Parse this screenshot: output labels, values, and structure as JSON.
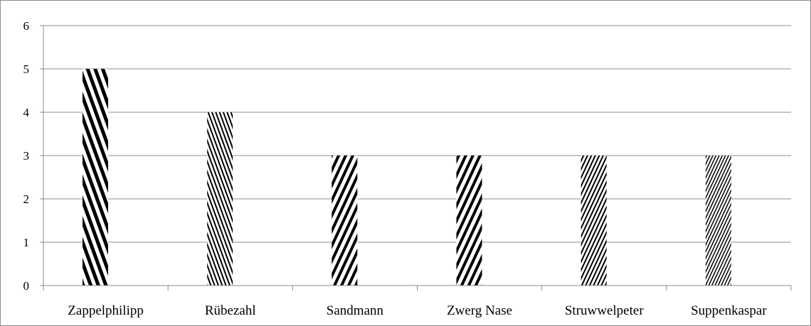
{
  "chart_data": {
    "type": "bar",
    "categories": [
      "Zappelphilipp",
      "Rübezahl",
      "Sandmann",
      "Zwerg Nase",
      "Struwwelpeter",
      "Suppenkaspar"
    ],
    "values": [
      5,
      4,
      3,
      3,
      3,
      3
    ],
    "title": "",
    "xlabel": "",
    "ylabel": "",
    "ylim": [
      0,
      6
    ],
    "yticks": [
      "0",
      "1",
      "2",
      "3",
      "4",
      "5",
      "6"
    ],
    "grid": true,
    "legend": "none",
    "bar_fill": "hatched",
    "colors": {
      "bar_stroke": "#000000",
      "grid": "#8c8c8c",
      "axis": "#8c8c8c",
      "border": "#8c8c8c"
    }
  }
}
